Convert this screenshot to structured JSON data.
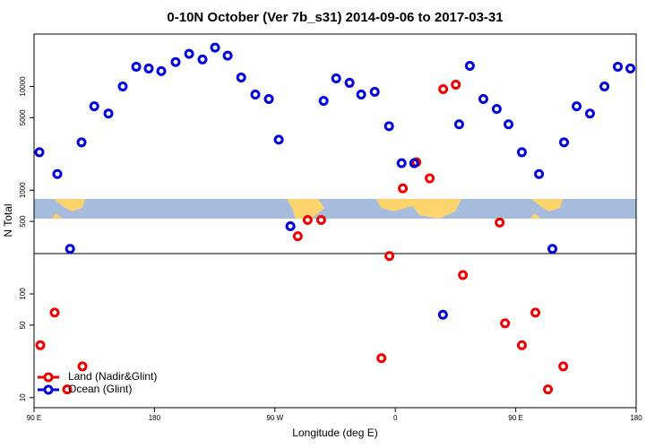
{
  "chart_data": {
    "type": "scatter",
    "title": "0-10N October (Ver 7b_s31)   2014-09-06 to 2017-03-31",
    "x_label": "Longitude (deg E)",
    "y_label": "N Total",
    "log_y": true,
    "legend": "bottom-left",
    "xlim": [
      90,
      540
    ],
    "xticks": [
      {
        "value": 90,
        "label": "90 E"
      },
      180,
      {
        "value": 270,
        "label": "90 W"
      },
      {
        "value": 360,
        "label": "0"
      },
      {
        "value": 450,
        "label": "90 E"
      },
      {
        "value": 540,
        "label": "180"
      }
    ],
    "ylim": [
      8,
      32000
    ],
    "yticks": [
      10,
      50,
      100,
      500,
      1000,
      5000,
      10000
    ],
    "reference_line": 245,
    "series": [
      {
        "name": "Land (Nadir&Glint)",
        "color": "#ee0000",
        "x": [
          94.7,
          105.4,
          114.8,
          126.2,
          287.1,
          294.5,
          304.6,
          349.6,
          355.6,
          365.6,
          375.7,
          385.7,
          395.8,
          405.2,
          410.5,
          438,
          442,
          454.6,
          464.7,
          474.1,
          485.5
        ],
        "values": [
          32,
          66,
          12,
          20,
          360,
          516,
          516,
          24,
          232,
          1040,
          1860,
          1300,
          9420,
          10400,
          152,
          487,
          52,
          32,
          66,
          12,
          20
        ]
      },
      {
        "name": "Ocean (Glint)",
        "color": "#0000dd",
        "x": [
          94,
          107.4,
          116.9,
          125.5,
          135,
          145.6,
          156.3,
          166.4,
          175.7,
          185.1,
          195.8,
          205.9,
          215.9,
          225.3,
          234.7,
          244.8,
          255.4,
          265.5,
          272.9,
          281.6,
          306.4,
          315.8,
          325.8,
          334.5,
          344.6,
          355.3,
          364.7,
          374.1,
          395.6,
          407.7,
          415.7,
          425.8,
          435.8,
          444.6,
          454.6,
          467.4,
          477.4,
          486.1,
          495.5,
          505.5,
          516.3,
          526.3,
          535.7
        ],
        "values": [
          2320,
          1430,
          272,
          2890,
          6440,
          5480,
          10000,
          15500,
          14900,
          14050,
          17200,
          20600,
          18200,
          23700,
          19800,
          12200,
          8350,
          7560,
          3070,
          449,
          7260,
          11970,
          10840,
          8350,
          8880,
          4140,
          1820,
          1820,
          63,
          4310,
          15800,
          7560,
          6070,
          4310,
          2320,
          1430,
          272,
          2890,
          6440,
          5480,
          10000,
          15500,
          14900
        ]
      }
    ]
  }
}
